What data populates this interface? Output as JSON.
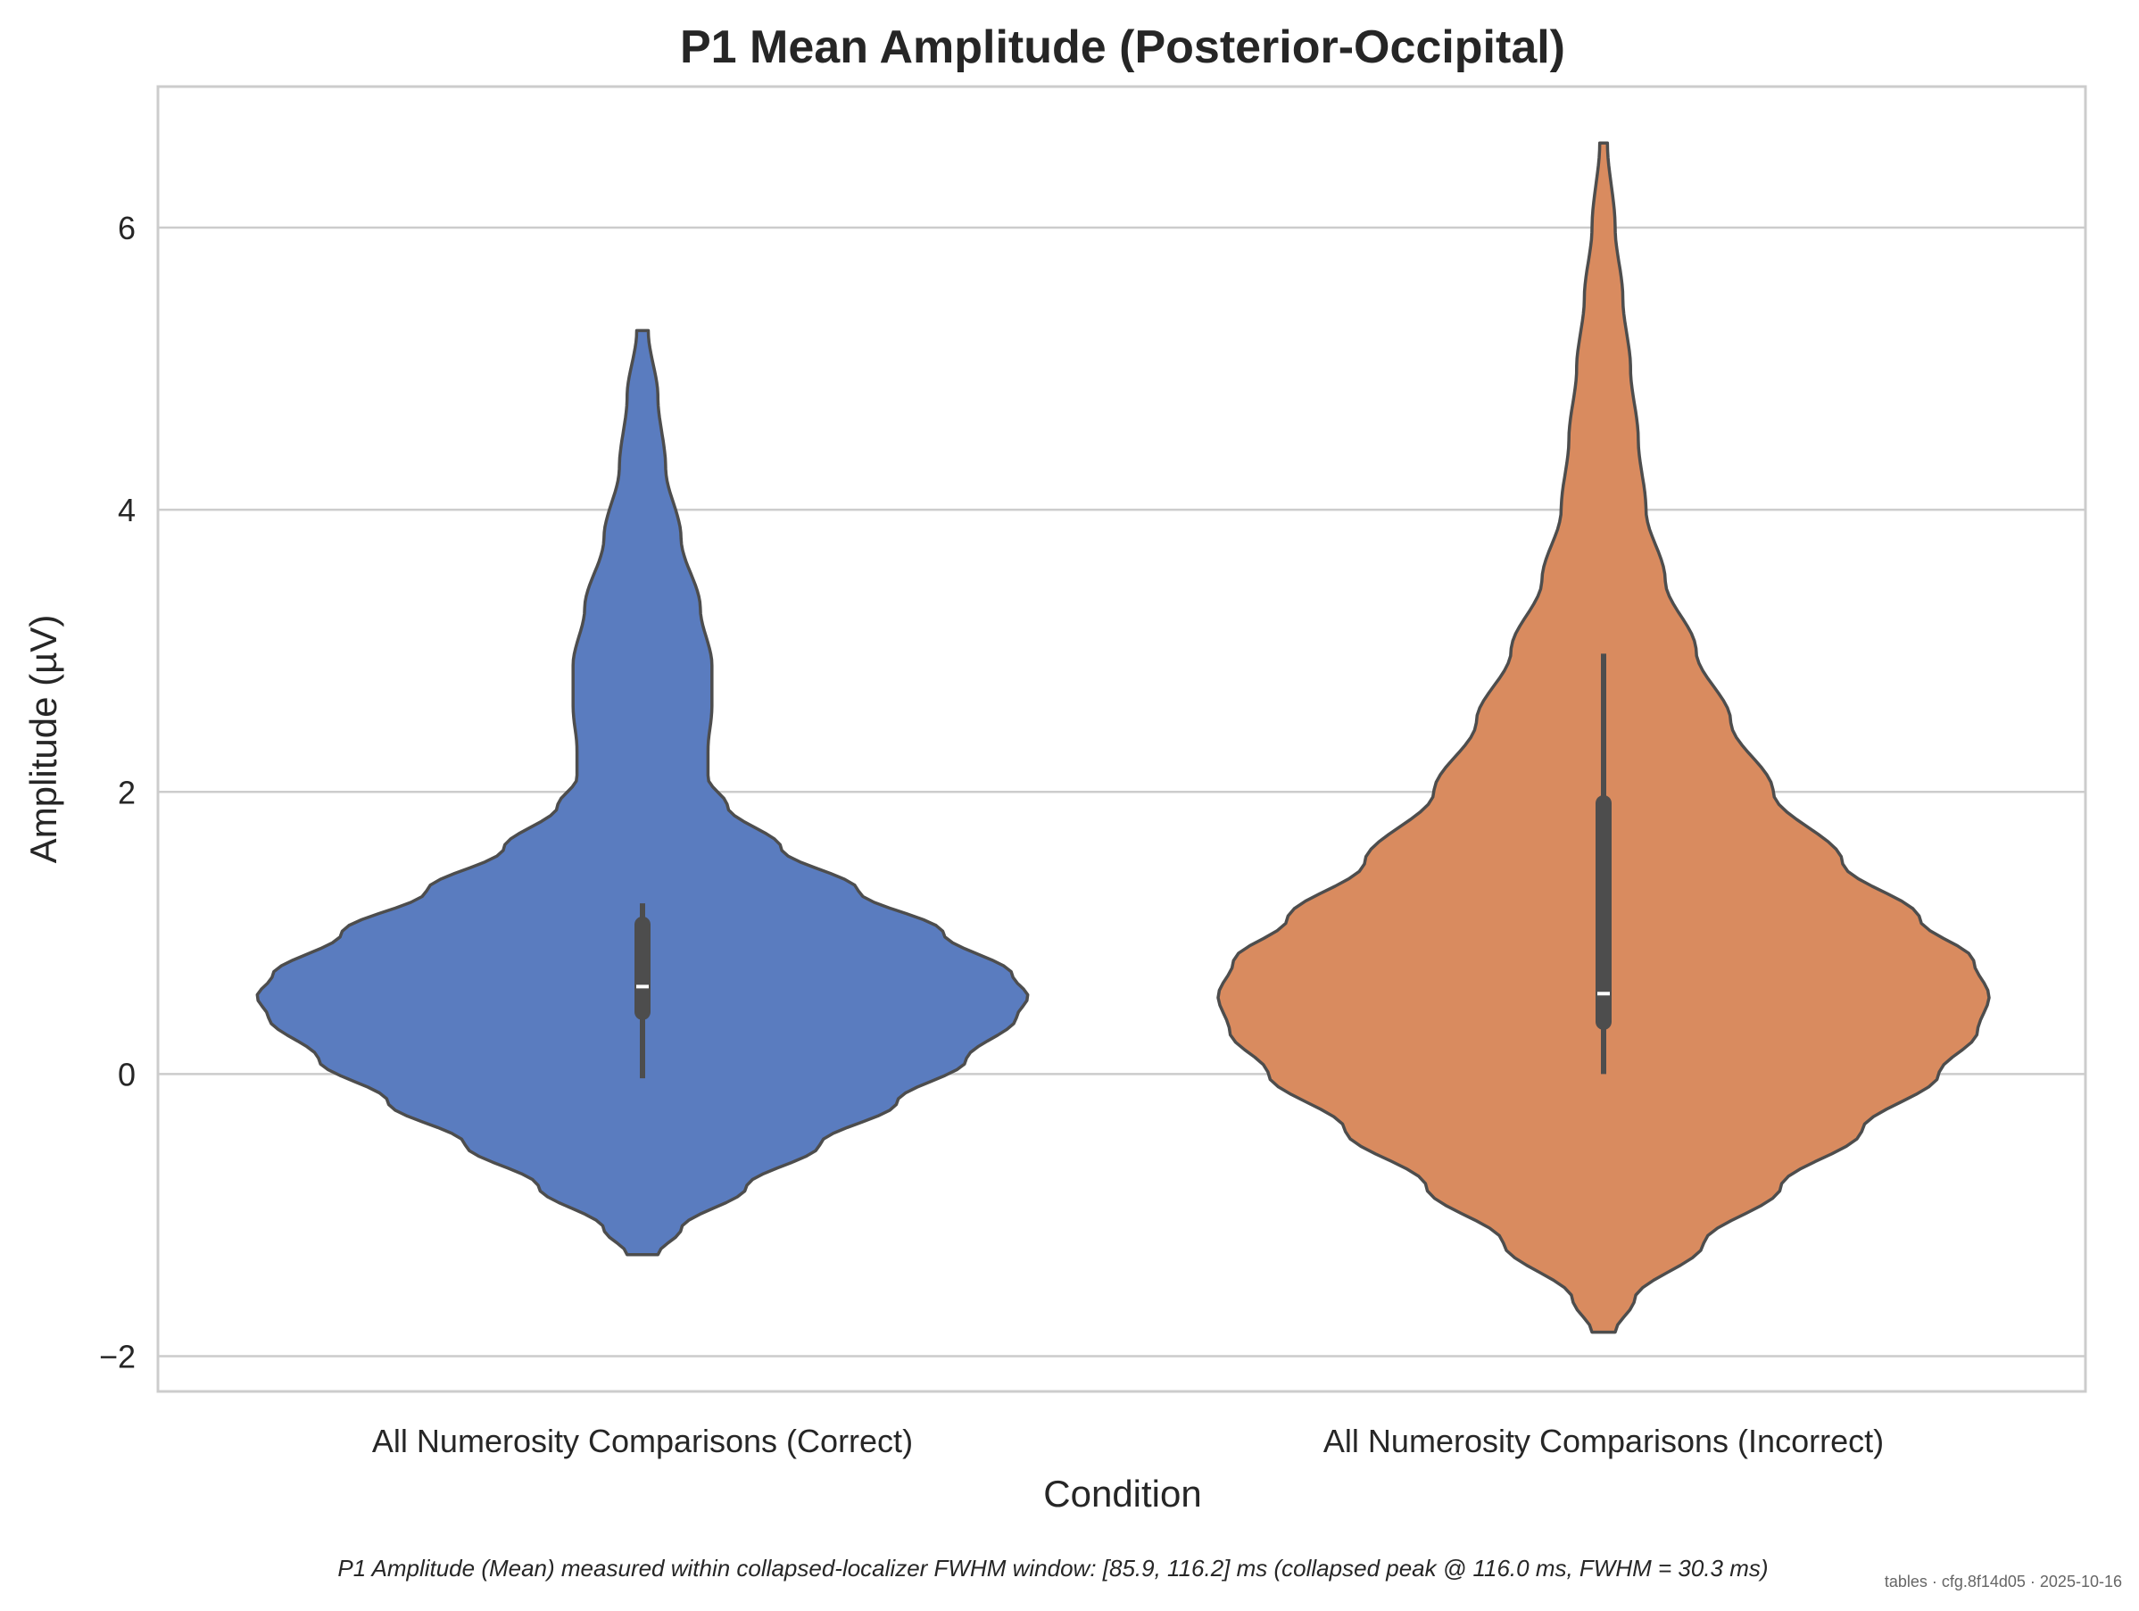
{
  "chart_data": {
    "type": "violin",
    "title": "P1 Mean Amplitude (Posterior-Occipital)",
    "xlabel": "Condition",
    "ylabel": "Amplitude (µV)",
    "ylim": [
      -2.25,
      7.0
    ],
    "yticks": [
      -2,
      0,
      2,
      4,
      6
    ],
    "ytick_labels": [
      "−2",
      "0",
      "2",
      "4",
      "6"
    ],
    "grid": "y",
    "categories": [
      "All Numerosity Comparisons (Correct)",
      "All Numerosity Comparisons (Incorrect)"
    ],
    "violins": [
      {
        "color": "#5a7cbf",
        "range": [
          -1.28,
          5.27
        ],
        "box": {
          "whisker_low": -0.03,
          "q1": 0.44,
          "median": 0.62,
          "q3": 1.06,
          "whisker_high": 1.21
        },
        "density_profile": [
          [
            -1.28,
            0.04
          ],
          [
            -1.1,
            0.1
          ],
          [
            -0.8,
            0.27
          ],
          [
            -0.5,
            0.46
          ],
          [
            -0.2,
            0.66
          ],
          [
            0.1,
            0.84
          ],
          [
            0.4,
            0.97
          ],
          [
            0.55,
            1.0
          ],
          [
            0.7,
            0.96
          ],
          [
            1.0,
            0.78
          ],
          [
            1.3,
            0.56
          ],
          [
            1.6,
            0.36
          ],
          [
            1.9,
            0.22
          ],
          [
            2.1,
            0.17
          ],
          [
            2.3,
            0.17
          ],
          [
            2.6,
            0.18
          ],
          [
            2.9,
            0.18
          ],
          [
            3.3,
            0.15
          ],
          [
            3.8,
            0.1
          ],
          [
            4.3,
            0.06
          ],
          [
            4.8,
            0.04
          ],
          [
            5.27,
            0.015
          ]
        ]
      },
      {
        "color": "#d98b5f",
        "range": [
          -1.83,
          6.6
        ],
        "box": {
          "whisker_low": 0.0,
          "q1": 0.37,
          "median": 0.57,
          "q3": 1.92,
          "whisker_high": 2.98
        },
        "density_profile": [
          [
            -1.83,
            0.03
          ],
          [
            -1.6,
            0.08
          ],
          [
            -1.2,
            0.26
          ],
          [
            -0.8,
            0.46
          ],
          [
            -0.4,
            0.67
          ],
          [
            0.0,
            0.87
          ],
          [
            0.3,
            0.97
          ],
          [
            0.55,
            1.0
          ],
          [
            0.8,
            0.96
          ],
          [
            1.1,
            0.82
          ],
          [
            1.5,
            0.62
          ],
          [
            2.0,
            0.44
          ],
          [
            2.5,
            0.33
          ],
          [
            3.0,
            0.24
          ],
          [
            3.5,
            0.16
          ],
          [
            4.0,
            0.11
          ],
          [
            4.5,
            0.09
          ],
          [
            5.0,
            0.07
          ],
          [
            5.5,
            0.05
          ],
          [
            6.0,
            0.03
          ],
          [
            6.6,
            0.01
          ]
        ]
      }
    ]
  },
  "caption": "P1 Amplitude (Mean) measured within collapsed-localizer FWHM window: [85.9, 116.2] ms (collapsed peak @ 116.0 ms, FWHM = 30.3 ms)",
  "stamp": "tables · cfg.8f14d05 · 2025-10-16"
}
